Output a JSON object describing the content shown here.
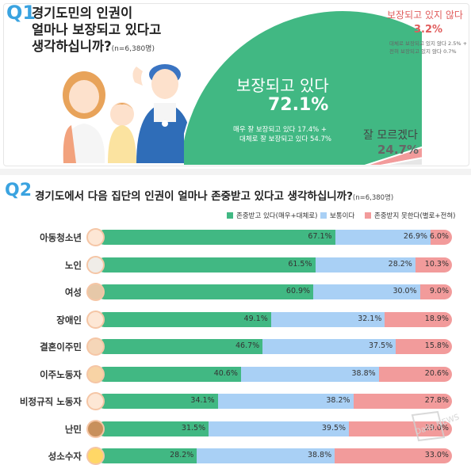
{
  "q1": {
    "num": "Q1",
    "title_lines": [
      "경기도민의 인권이",
      "얼마나 보장되고 있다고",
      "생각하십니까?"
    ],
    "n": "(n=6,380명)",
    "guaranteed": {
      "label": "보장되고 있다",
      "pct": "72.1%",
      "detail1": "매우 잘 보장되고 있다 17.4% +",
      "detail2": "대체로 잘 보장되고 있다 54.7%"
    },
    "not_guaranteed": {
      "label": "보장되고 있지 않다",
      "pct": "3.2%",
      "detail1": "대체로 보장되고 있지 않다 2.5% +",
      "detail2": "전혀 보장되고 있지 않다 0.7%"
    },
    "dont_know": {
      "label": "잘 모르겠다",
      "pct": "24.7%"
    }
  },
  "q2": {
    "num": "Q2",
    "title": "경기도에서 다음 집단의 인권이 얼마나 존중받고 있다고 생각하십니까?",
    "n": "(n=6,380명)",
    "legend": [
      "존중받고 있다(매우+대체로)",
      "보통이다",
      "존중받지 못한다(별로+전혀)"
    ]
  },
  "colors": {
    "green": "#41b883",
    "blue": "#a9d0f5",
    "red": "#f29b9b",
    "grey": "#e6e6e6",
    "accent": "#3aa3e0"
  },
  "watermark": "Daily NEWS",
  "chart_data": [
    {
      "type": "pie",
      "labels": [
        "보장되고 있다",
        "보장되고 있지 않다",
        "잘 모르겠다"
      ],
      "values": [
        72.1,
        3.2,
        24.7
      ],
      "sub_values": {
        "보장되고 있다": {
          "매우 잘 보장되고 있다": 17.4,
          "대체로 잘 보장되고 있다": 54.7
        },
        "보장되고 있지 않다": {
          "대체로 보장되고 있지 않다": 2.5,
          "전혀 보장되고 있지 않다": 0.7
        }
      },
      "title": "경기도민의 인권이 얼마나 보장되고 있다고 생각하십니까?"
    },
    {
      "type": "bar",
      "stacked": true,
      "orientation": "horizontal",
      "title": "경기도에서 다음 집단의 인권이 얼마나 존중받고 있다고 생각하십니까?",
      "categories": [
        "아동청소년",
        "노인",
        "여성",
        "장애인",
        "결혼이주민",
        "이주노동자",
        "비정규직 노동자",
        "난민",
        "성소수자"
      ],
      "series": [
        {
          "name": "존중받고 있다(매우+대체로)",
          "values": [
            67.1,
            61.5,
            60.9,
            49.1,
            46.7,
            40.6,
            34.1,
            31.5,
            28.2
          ]
        },
        {
          "name": "보통이다",
          "values": [
            26.9,
            28.2,
            30.0,
            32.1,
            37.5,
            38.8,
            38.2,
            39.5,
            38.8
          ]
        },
        {
          "name": "존중받지 못한다(별로+전혀)",
          "values": [
            6.0,
            10.3,
            9.0,
            18.9,
            15.8,
            20.6,
            27.8,
            29.0,
            33.0
          ]
        }
      ],
      "labels": [
        [
          "67.1%",
          "26.9%",
          "6.0%"
        ],
        [
          "61.5%",
          "28.2%",
          "10.3%"
        ],
        [
          "60.9%",
          "30.0%",
          "9.0%"
        ],
        [
          "49.1%",
          "32.1%",
          "18.9%"
        ],
        [
          "46.7%",
          "37.5%",
          "15.8%"
        ],
        [
          "40.6%",
          "38.8%",
          "20.6%"
        ],
        [
          "34.1%",
          "38.2%",
          "27.8%"
        ],
        [
          "31.5%",
          "39.5%",
          "29.0%"
        ],
        [
          "28.2%",
          "38.8%",
          "33.0%"
        ]
      ],
      "ylim": [
        0,
        100
      ]
    }
  ]
}
